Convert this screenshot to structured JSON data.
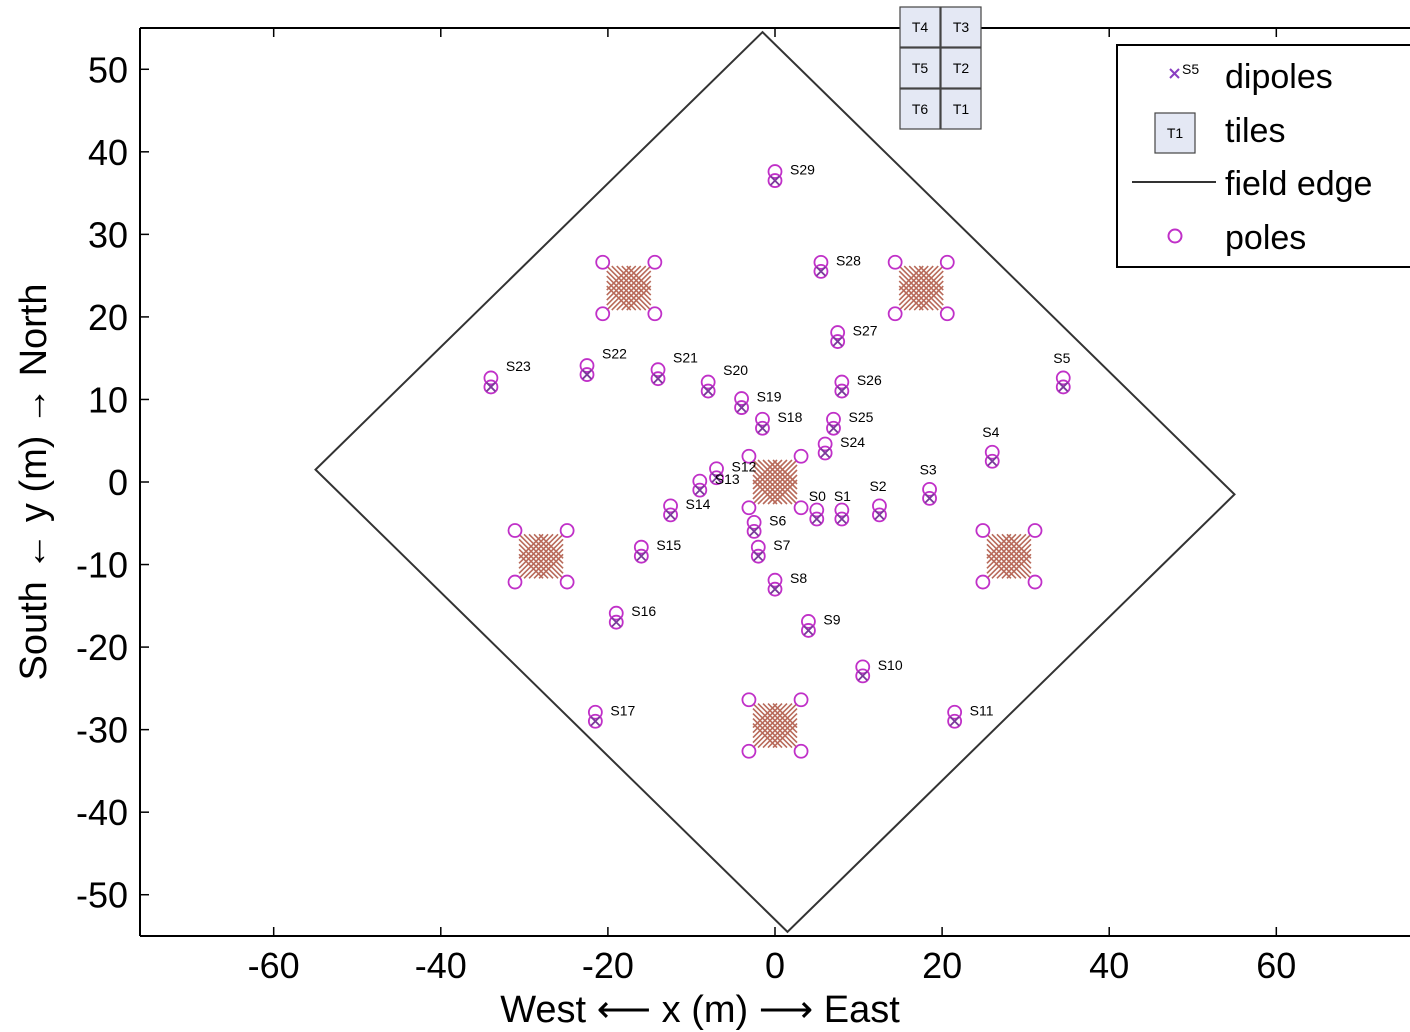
{
  "chart_data": {
    "type": "scatter",
    "title": "",
    "xlabel": "West ⟵ x (m) ⟶ East",
    "ylabel": "South ← y (m) → North",
    "xlim": [
      -76,
      76
    ],
    "ylim": [
      -55,
      55
    ],
    "xticks": [
      -60,
      -40,
      -20,
      0,
      20,
      40,
      60
    ],
    "yticks": [
      -50,
      -40,
      -30,
      -20,
      -10,
      0,
      10,
      20,
      30,
      40,
      50
    ],
    "grid": false,
    "legend": {
      "position": "top-right",
      "entries": [
        {
          "label": "dipoles",
          "marker": "x",
          "marker_text": "S5",
          "color": "#8a3fc2"
        },
        {
          "label": "tiles",
          "marker": "square",
          "marker_text": "T1"
        },
        {
          "label": "field edge",
          "marker": "line",
          "color": "#333333"
        },
        {
          "label": "poles",
          "marker": "o",
          "color": "#c030c8"
        }
      ]
    },
    "colors": {
      "pole": "#c030c8",
      "dipole": "#7a3a9a",
      "tile_cross": "#b86a5a",
      "edge": "#333333"
    },
    "field_edge": [
      [
        -1.5,
        54.5
      ],
      [
        55,
        -1.5
      ],
      [
        1.5,
        -54.5
      ],
      [
        -55,
        1.5
      ]
    ],
    "stations": [
      {
        "name": "S0",
        "x": 5,
        "y": -4
      },
      {
        "name": "S1",
        "x": 8,
        "y": -4
      },
      {
        "name": "S2",
        "x": 12.5,
        "y": -3.5
      },
      {
        "name": "S3",
        "x": 18.5,
        "y": -1.5
      },
      {
        "name": "S4",
        "x": 26,
        "y": 3
      },
      {
        "name": "S5",
        "x": 34.5,
        "y": 12
      },
      {
        "name": "S6",
        "x": -2.5,
        "y": -5.5
      },
      {
        "name": "S7",
        "x": -2,
        "y": -8.5
      },
      {
        "name": "S8",
        "x": 0,
        "y": -12.5
      },
      {
        "name": "S9",
        "x": 4,
        "y": -17.5
      },
      {
        "name": "S10",
        "x": 10.5,
        "y": -23
      },
      {
        "name": "S11",
        "x": 21.5,
        "y": -28.5
      },
      {
        "name": "S12",
        "x": -7,
        "y": 1
      },
      {
        "name": "S13",
        "x": -9,
        "y": -0.5
      },
      {
        "name": "S14",
        "x": -12.5,
        "y": -3.5
      },
      {
        "name": "S15",
        "x": -16,
        "y": -8.5
      },
      {
        "name": "S16",
        "x": -19,
        "y": -16.5
      },
      {
        "name": "S17",
        "x": -21.5,
        "y": -28.5
      },
      {
        "name": "S18",
        "x": -1.5,
        "y": 7
      },
      {
        "name": "S19",
        "x": -4,
        "y": 9.5
      },
      {
        "name": "S20",
        "x": -8,
        "y": 11.5
      },
      {
        "name": "S21",
        "x": -14,
        "y": 13
      },
      {
        "name": "S22",
        "x": -22.5,
        "y": 13.5
      },
      {
        "name": "S23",
        "x": -34,
        "y": 12
      },
      {
        "name": "S24",
        "x": 6,
        "y": 4
      },
      {
        "name": "S25",
        "x": 7,
        "y": 7
      },
      {
        "name": "S26",
        "x": 8,
        "y": 11.5
      },
      {
        "name": "S27",
        "x": 7.5,
        "y": 17.5
      },
      {
        "name": "S28",
        "x": 5.5,
        "y": 26
      },
      {
        "name": "S29",
        "x": 0,
        "y": 37
      }
    ],
    "tiles": [
      {
        "name": "T1",
        "x": 0,
        "y": 0
      },
      {
        "name": "tile-nw",
        "x": -17.5,
        "y": 23.5
      },
      {
        "name": "tile-ne",
        "x": 17.5,
        "y": 23.5
      },
      {
        "name": "tile-w",
        "x": -28,
        "y": -9
      },
      {
        "name": "tile-e",
        "x": 28,
        "y": -9
      },
      {
        "name": "tile-s",
        "x": 0,
        "y": -29.5
      }
    ],
    "tile_grid_labels": [
      "T4",
      "T3",
      "T5",
      "T2",
      "T6",
      "T1"
    ]
  }
}
